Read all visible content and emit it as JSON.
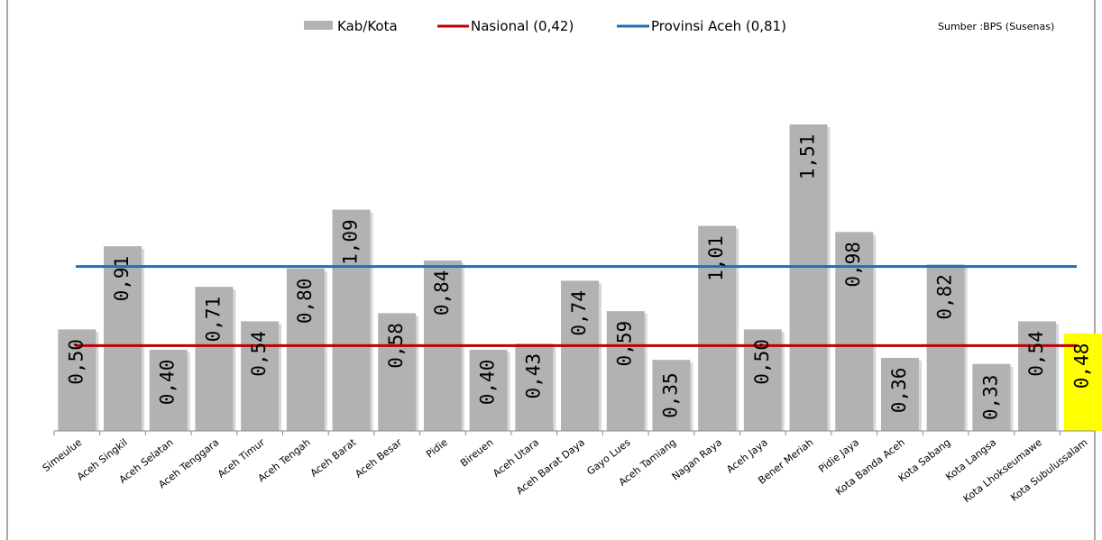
{
  "chart_data": {
    "type": "bar",
    "categories": [
      "Simeulue",
      "Aceh Singkil",
      "Aceh Selatan",
      "Aceh Tenggara",
      "Aceh Timur",
      "Aceh Tengah",
      "Aceh Barat",
      "Aceh Besar",
      "Pidie",
      "Bireuen",
      "Aceh Utara",
      "Aceh Barat Daya",
      "Gayo Lues",
      "Aceh Tamiang",
      "Nagan Raya",
      "Aceh Jaya",
      "Bener Meriah",
      "Pidie Jaya",
      "Kota Banda Aceh",
      "Kota Sabang",
      "Kota Langsa",
      "Kota Lhokseumawe",
      "Kota Subulussalam"
    ],
    "series": [
      {
        "name": "Kab/Kota",
        "values": [
          0.5,
          0.91,
          0.4,
          0.71,
          0.54,
          0.8,
          1.09,
          0.58,
          0.84,
          0.4,
          0.43,
          0.74,
          0.59,
          0.35,
          1.01,
          0.5,
          1.51,
          0.98,
          0.36,
          0.82,
          0.33,
          0.54,
          0.48
        ],
        "labels": [
          "0,50",
          "0,91",
          "0,40",
          "0,71",
          "0,54",
          "0,80",
          "1,09",
          "0,58",
          "0,84",
          "0,40",
          "0,43",
          "0,74",
          "0,59",
          "0,35",
          "1,01",
          "0,50",
          "1,51",
          "0,98",
          "0,36",
          "0,82",
          "0,33",
          "0,54",
          "0,48"
        ],
        "color": "#b2b2b2",
        "highlight_index": 22,
        "highlight_color": "#ffff00"
      }
    ],
    "reference_lines": [
      {
        "name": "Nasional (0,42)",
        "value": 0.42,
        "color": "#c00000"
      },
      {
        "name": "Provinsi Aceh (0,81)",
        "value": 0.81,
        "color": "#1f6fb5"
      }
    ],
    "ylim": [
      0,
      1.51
    ],
    "legend_position": "top",
    "grid": false,
    "source": "Sumber :BPS (Susenas)",
    "title": "",
    "xlabel": "",
    "ylabel": ""
  }
}
